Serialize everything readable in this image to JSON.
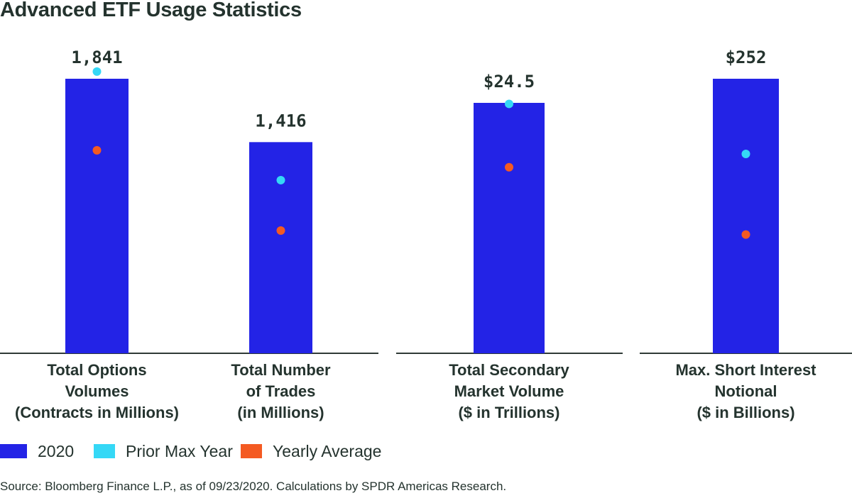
{
  "chart_data": {
    "type": "bar",
    "title": "Advanced ETF Usage Statistics",
    "categories": [
      [
        "Total Options",
        "Volumes",
        "(Contracts in Millions)"
      ],
      [
        "Total Number",
        "of Trades",
        "(in Millions)"
      ],
      [
        "Total Secondary",
        "Market Volume",
        "($ in Trillions)"
      ],
      [
        "Max. Short Interest",
        "Notional",
        "($ in Billions)"
      ]
    ],
    "panels": [
      [
        0,
        1
      ],
      [
        2
      ],
      [
        3
      ]
    ],
    "series": [
      {
        "name": "2020",
        "type": "bar",
        "color": "#2323e6",
        "values": [
          1841,
          1416,
          24.5,
          252
        ],
        "labels": [
          "1,841",
          "1,416",
          "$24.5",
          "$252"
        ]
      },
      {
        "name": "Prior Max Year",
        "type": "dot",
        "color": "#35d8f6",
        "values": [
          1889,
          1161,
          24.4,
          183
        ]
      },
      {
        "name": "Yearly Average",
        "type": "dot",
        "color": "#f45a22",
        "values": [
          1361,
          823,
          18.2,
          109
        ]
      }
    ],
    "axis_note": "Each category uses its own independent scale; no y-axis ticks shown",
    "grid": false,
    "legend_position": "bottom-left"
  },
  "legend": [
    {
      "label": "2020",
      "color": "#2323e6"
    },
    {
      "label": "Prior Max Year",
      "color": "#35d8f6"
    },
    {
      "label": "Yearly Average",
      "color": "#f45a22"
    }
  ],
  "source": "Source: Bloomberg Finance L.P., as of 09/23/2020. Calculations by SPDR Americas Research.",
  "text_color": "#24332e",
  "axis_color": "#2f3a36"
}
